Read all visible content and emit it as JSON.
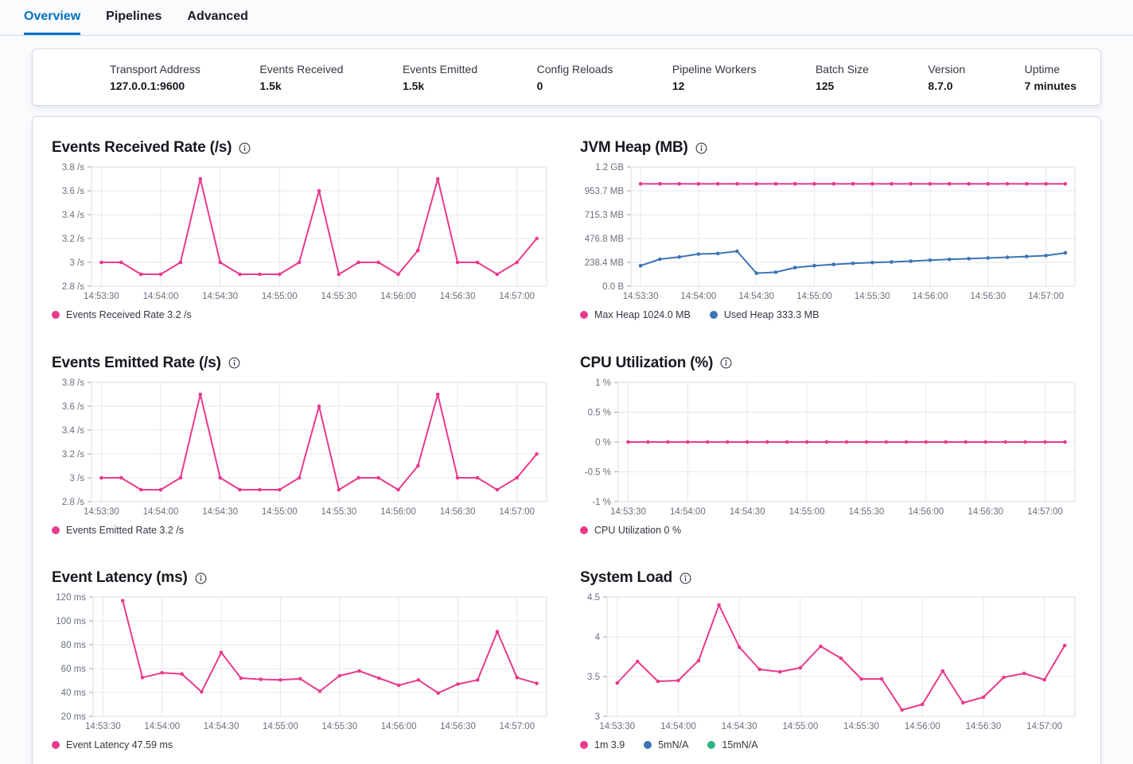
{
  "tabs": {
    "items": [
      {
        "label": "Overview",
        "active": true
      },
      {
        "label": "Pipelines",
        "active": false
      },
      {
        "label": "Advanced",
        "active": false
      }
    ]
  },
  "stats": {
    "items": [
      {
        "label": "Transport Address",
        "value": "127.0.0.1:9600"
      },
      {
        "label": "Events Received",
        "value": "1.5k"
      },
      {
        "label": "Events Emitted",
        "value": "1.5k"
      },
      {
        "label": "Config Reloads",
        "value": "0"
      },
      {
        "label": "Pipeline Workers",
        "value": "12"
      },
      {
        "label": "Batch Size",
        "value": "125"
      },
      {
        "label": "Version",
        "value": "8.7.0"
      },
      {
        "label": "Uptime",
        "value": "7 minutes"
      }
    ]
  },
  "colors": {
    "accent_pink": "#e93a8c",
    "accent_blue": "#3d73b3",
    "accent_green": "#2db57e",
    "tab_active_blue": "#0071c2",
    "grid_line": "#e3e7ee",
    "plot_border": "#d9dee7",
    "axis_text": "#69707d"
  },
  "chart_data": [
    {
      "id": "events-received-rate",
      "type": "line",
      "title": "Events Received Rate (/s)",
      "y_domain": [
        2.8,
        3.8
      ],
      "y_ticks": [
        {
          "v": 3.8,
          "label": "3.8 /s"
        },
        {
          "v": 3.6,
          "label": "3.6 /s"
        },
        {
          "v": 3.4,
          "label": "3.4 /s"
        },
        {
          "v": 3.2,
          "label": "3.2 /s"
        },
        {
          "v": 3.0,
          "label": "3 /s"
        },
        {
          "v": 2.8,
          "label": "2.8 /s"
        }
      ],
      "y_label_width": 50,
      "x_domain": [
        -5,
        225
      ],
      "x_ticks": [
        {
          "t": 0,
          "label": "14:53:30"
        },
        {
          "t": 30,
          "label": "14:54:00"
        },
        {
          "t": 60,
          "label": "14:54:30"
        },
        {
          "t": 90,
          "label": "14:55:00"
        },
        {
          "t": 120,
          "label": "14:55:30"
        },
        {
          "t": 150,
          "label": "14:56:00"
        },
        {
          "t": 180,
          "label": "14:56:30"
        },
        {
          "t": 210,
          "label": "14:57:00"
        }
      ],
      "x_seconds": [
        0,
        10,
        20,
        30,
        40,
        50,
        60,
        70,
        80,
        90,
        100,
        110,
        120,
        130,
        140,
        150,
        160,
        170,
        180,
        190,
        200,
        210,
        220
      ],
      "series": [
        {
          "name": "Events Received Rate",
          "color": "#e93a8c",
          "values": [
            3,
            3,
            2.9,
            2.9,
            3,
            3.7,
            3,
            2.9,
            2.9,
            2.9,
            3,
            3.6,
            2.9,
            3,
            3,
            2.9,
            3.1,
            3.7,
            3,
            3,
            2.9,
            3,
            3.2
          ]
        }
      ],
      "legend": [
        {
          "label": "Events Received Rate 3.2 /s",
          "color": "#e93a8c"
        }
      ]
    },
    {
      "id": "jvm-heap",
      "type": "line",
      "title": "JVM Heap (MB)",
      "y_domain": [
        0,
        1192.1
      ],
      "y_ticks": [
        {
          "v": 1192.1,
          "label": "1.2 GB"
        },
        {
          "v": 953.7,
          "label": "953.7 MB"
        },
        {
          "v": 715.3,
          "label": "715.3 MB"
        },
        {
          "v": 476.8,
          "label": "476.8 MB"
        },
        {
          "v": 238.4,
          "label": "238.4 MB"
        },
        {
          "v": 0,
          "label": "0.0 B"
        }
      ],
      "y_label_width": 64,
      "x_domain": [
        -5,
        225
      ],
      "x_ticks": [
        {
          "t": 0,
          "label": "14:53:30"
        },
        {
          "t": 30,
          "label": "14:54:00"
        },
        {
          "t": 60,
          "label": "14:54:30"
        },
        {
          "t": 90,
          "label": "14:55:00"
        },
        {
          "t": 120,
          "label": "14:55:30"
        },
        {
          "t": 150,
          "label": "14:56:00"
        },
        {
          "t": 180,
          "label": "14:56:30"
        },
        {
          "t": 210,
          "label": "14:57:00"
        }
      ],
      "x_seconds": [
        0,
        10,
        20,
        30,
        40,
        50,
        60,
        70,
        80,
        90,
        100,
        110,
        120,
        130,
        140,
        150,
        160,
        170,
        180,
        190,
        200,
        210,
        220
      ],
      "series": [
        {
          "name": "Max Heap",
          "color": "#e93a8c",
          "values": [
            1024,
            1024,
            1024,
            1024,
            1024,
            1024,
            1024,
            1024,
            1024,
            1024,
            1024,
            1024,
            1024,
            1024,
            1024,
            1024,
            1024,
            1024,
            1024,
            1024,
            1024,
            1024,
            1024
          ]
        },
        {
          "name": "Used Heap",
          "color": "#3d73b3",
          "values": [
            205,
            270,
            292,
            322,
            327,
            350,
            130,
            140,
            186,
            205,
            218,
            228,
            236,
            242,
            250,
            260,
            268,
            275,
            282,
            289,
            297,
            306,
            333.3
          ]
        }
      ],
      "legend": [
        {
          "label": "Max Heap 1024.0 MB",
          "color": "#e93a8c"
        },
        {
          "label": "Used Heap 333.3 MB",
          "color": "#3d73b3"
        }
      ]
    },
    {
      "id": "events-emitted-rate",
      "type": "line",
      "title": "Events Emitted Rate (/s)",
      "y_domain": [
        2.8,
        3.8
      ],
      "y_ticks": [
        {
          "v": 3.8,
          "label": "3.8 /s"
        },
        {
          "v": 3.6,
          "label": "3.6 /s"
        },
        {
          "v": 3.4,
          "label": "3.4 /s"
        },
        {
          "v": 3.2,
          "label": "3.2 /s"
        },
        {
          "v": 3.0,
          "label": "3 /s"
        },
        {
          "v": 2.8,
          "label": "2.8 /s"
        }
      ],
      "y_label_width": 50,
      "x_domain": [
        -5,
        225
      ],
      "x_ticks": [
        {
          "t": 0,
          "label": "14:53:30"
        },
        {
          "t": 30,
          "label": "14:54:00"
        },
        {
          "t": 60,
          "label": "14:54:30"
        },
        {
          "t": 90,
          "label": "14:55:00"
        },
        {
          "t": 120,
          "label": "14:55:30"
        },
        {
          "t": 150,
          "label": "14:56:00"
        },
        {
          "t": 180,
          "label": "14:56:30"
        },
        {
          "t": 210,
          "label": "14:57:00"
        }
      ],
      "x_seconds": [
        0,
        10,
        20,
        30,
        40,
        50,
        60,
        70,
        80,
        90,
        100,
        110,
        120,
        130,
        140,
        150,
        160,
        170,
        180,
        190,
        200,
        210,
        220
      ],
      "series": [
        {
          "name": "Events Emitted Rate",
          "color": "#e93a8c",
          "values": [
            3,
            3,
            2.9,
            2.9,
            3,
            3.7,
            3,
            2.9,
            2.9,
            2.9,
            3,
            3.6,
            2.9,
            3,
            3,
            2.9,
            3.1,
            3.7,
            3,
            3,
            2.9,
            3,
            3.2
          ]
        }
      ],
      "legend": [
        {
          "label": "Events Emitted Rate 3.2 /s",
          "color": "#e93a8c"
        }
      ]
    },
    {
      "id": "cpu-utilization",
      "type": "line",
      "title": "CPU Utilization (%)",
      "y_domain": [
        -1,
        1
      ],
      "y_ticks": [
        {
          "v": 1,
          "label": "1 %"
        },
        {
          "v": 0.5,
          "label": "0.5 %"
        },
        {
          "v": 0,
          "label": "0 %"
        },
        {
          "v": -0.5,
          "label": "-0.5 %"
        },
        {
          "v": -1,
          "label": "-1 %"
        }
      ],
      "y_label_width": 48,
      "x_domain": [
        -5,
        225
      ],
      "x_ticks": [
        {
          "t": 0,
          "label": "14:53:30"
        },
        {
          "t": 30,
          "label": "14:54:00"
        },
        {
          "t": 60,
          "label": "14:54:30"
        },
        {
          "t": 90,
          "label": "14:55:00"
        },
        {
          "t": 120,
          "label": "14:55:30"
        },
        {
          "t": 150,
          "label": "14:56:00"
        },
        {
          "t": 180,
          "label": "14:56:30"
        },
        {
          "t": 210,
          "label": "14:57:00"
        }
      ],
      "x_seconds": [
        0,
        10,
        20,
        30,
        40,
        50,
        60,
        70,
        80,
        90,
        100,
        110,
        120,
        130,
        140,
        150,
        160,
        170,
        180,
        190,
        200,
        210,
        220
      ],
      "series": [
        {
          "name": "CPU Utilization",
          "color": "#e93a8c",
          "values": [
            0,
            0,
            0,
            0,
            0,
            0,
            0,
            0,
            0,
            0,
            0,
            0,
            0,
            0,
            0,
            0,
            0,
            0,
            0,
            0,
            0,
            0,
            0
          ]
        }
      ],
      "legend": [
        {
          "label": "CPU Utilization 0 %",
          "color": "#e93a8c"
        }
      ]
    },
    {
      "id": "event-latency",
      "type": "line",
      "title": "Event Latency (ms)",
      "y_domain": [
        20,
        120
      ],
      "y_ticks": [
        {
          "v": 120,
          "label": "120 ms"
        },
        {
          "v": 100,
          "label": "100 ms"
        },
        {
          "v": 80,
          "label": "80 ms"
        },
        {
          "v": 60,
          "label": "60 ms"
        },
        {
          "v": 40,
          "label": "40 ms"
        },
        {
          "v": 20,
          "label": "20 ms"
        }
      ],
      "y_label_width": 52,
      "x_domain": [
        -5,
        225
      ],
      "x_ticks": [
        {
          "t": 0,
          "label": "14:53:30"
        },
        {
          "t": 30,
          "label": "14:54:00"
        },
        {
          "t": 60,
          "label": "14:54:30"
        },
        {
          "t": 90,
          "label": "14:55:00"
        },
        {
          "t": 120,
          "label": "14:55:30"
        },
        {
          "t": 150,
          "label": "14:56:00"
        },
        {
          "t": 180,
          "label": "14:56:30"
        },
        {
          "t": 210,
          "label": "14:57:00"
        }
      ],
      "x_seconds": [
        10,
        20,
        30,
        40,
        50,
        60,
        70,
        80,
        90,
        100,
        110,
        120,
        130,
        140,
        150,
        160,
        170,
        180,
        190,
        200,
        210,
        220
      ],
      "series": [
        {
          "name": "Event Latency",
          "color": "#e93a8c",
          "values": [
            117,
            52.5,
            56.5,
            55.5,
            40.5,
            73.5,
            52,
            51,
            50.5,
            51.5,
            41,
            54,
            58,
            52,
            46,
            50.5,
            39.5,
            47,
            50.5,
            91,
            52.5,
            47.59
          ]
        }
      ],
      "legend": [
        {
          "label": "Event Latency 47.59 ms",
          "color": "#e93a8c"
        }
      ]
    },
    {
      "id": "system-load",
      "type": "line",
      "title": "System Load",
      "y_domain": [
        3,
        4.5
      ],
      "y_ticks": [
        {
          "v": 4.5,
          "label": "4.5"
        },
        {
          "v": 4,
          "label": "4"
        },
        {
          "v": 3.5,
          "label": "3.5"
        },
        {
          "v": 3,
          "label": "3"
        }
      ],
      "y_label_width": 34,
      "x_domain": [
        -5,
        225
      ],
      "x_ticks": [
        {
          "t": 0,
          "label": "14:53:30"
        },
        {
          "t": 30,
          "label": "14:54:00"
        },
        {
          "t": 60,
          "label": "14:54:30"
        },
        {
          "t": 90,
          "label": "14:55:00"
        },
        {
          "t": 120,
          "label": "14:55:30"
        },
        {
          "t": 150,
          "label": "14:56:00"
        },
        {
          "t": 180,
          "label": "14:56:30"
        },
        {
          "t": 210,
          "label": "14:57:00"
        }
      ],
      "x_seconds": [
        0,
        10,
        20,
        30,
        40,
        50,
        60,
        70,
        80,
        90,
        100,
        110,
        120,
        130,
        140,
        150,
        160,
        170,
        180,
        190,
        200,
        210,
        220
      ],
      "series": [
        {
          "name": "1m",
          "color": "#e93a8c",
          "values": [
            3.42,
            3.69,
            3.44,
            3.45,
            3.7,
            4.4,
            3.87,
            3.59,
            3.56,
            3.61,
            3.88,
            3.73,
            3.47,
            3.47,
            3.08,
            3.15,
            3.57,
            3.17,
            3.24,
            3.49,
            3.54,
            3.46,
            3.89
          ]
        }
      ],
      "legend": [
        {
          "label": "1m 3.9",
          "color": "#e93a8c"
        },
        {
          "label": "5mN/A",
          "color": "#3d73b3"
        },
        {
          "label": "15mN/A",
          "color": "#2db57e"
        }
      ]
    }
  ]
}
